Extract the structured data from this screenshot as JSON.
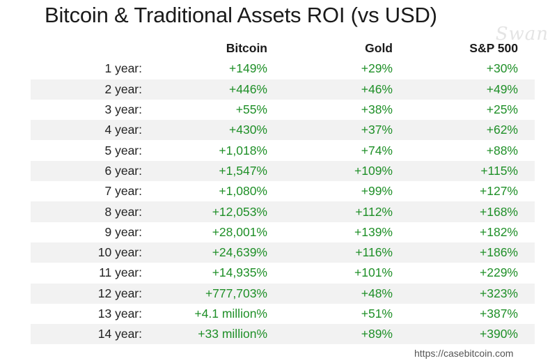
{
  "title": "Bitcoin & Traditional Assets ROI (vs USD)",
  "watermark": "Swan",
  "source": "https://casebitcoin.com",
  "colors": {
    "positive": "#1e8f27",
    "row_shade": "#f2f2f2"
  },
  "chart_data": {
    "type": "table",
    "title": "Bitcoin & Traditional Assets ROI (vs USD)",
    "columns": [
      "",
      "Bitcoin",
      "Gold",
      "S&P 500"
    ],
    "rows": [
      [
        "1 year:",
        "+149%",
        "+29%",
        "+30%"
      ],
      [
        "2 year:",
        "+446%",
        "+46%",
        "+49%"
      ],
      [
        "3 year:",
        "+55%",
        "+38%",
        "+25%"
      ],
      [
        "4 year:",
        "+430%",
        "+37%",
        "+62%"
      ],
      [
        "5 year:",
        "+1,018%",
        "+74%",
        "+88%"
      ],
      [
        "6 year:",
        "+1,547%",
        "+109%",
        "+115%"
      ],
      [
        "7 year:",
        "+1,080%",
        "+99%",
        "+127%"
      ],
      [
        "8 year:",
        "+12,053%",
        "+112%",
        "+168%"
      ],
      [
        "9 year:",
        "+28,001%",
        "+139%",
        "+182%"
      ],
      [
        "10 year:",
        "+24,639%",
        "+116%",
        "+186%"
      ],
      [
        "11 year:",
        "+14,935%",
        "+101%",
        "+229%"
      ],
      [
        "12 year:",
        "+777,703%",
        "+48%",
        "+323%"
      ],
      [
        "13 year:",
        "+4.1 million%",
        "+51%",
        "+387%"
      ],
      [
        "14 year:",
        "+33 million%",
        "+89%",
        "+390%"
      ]
    ]
  }
}
